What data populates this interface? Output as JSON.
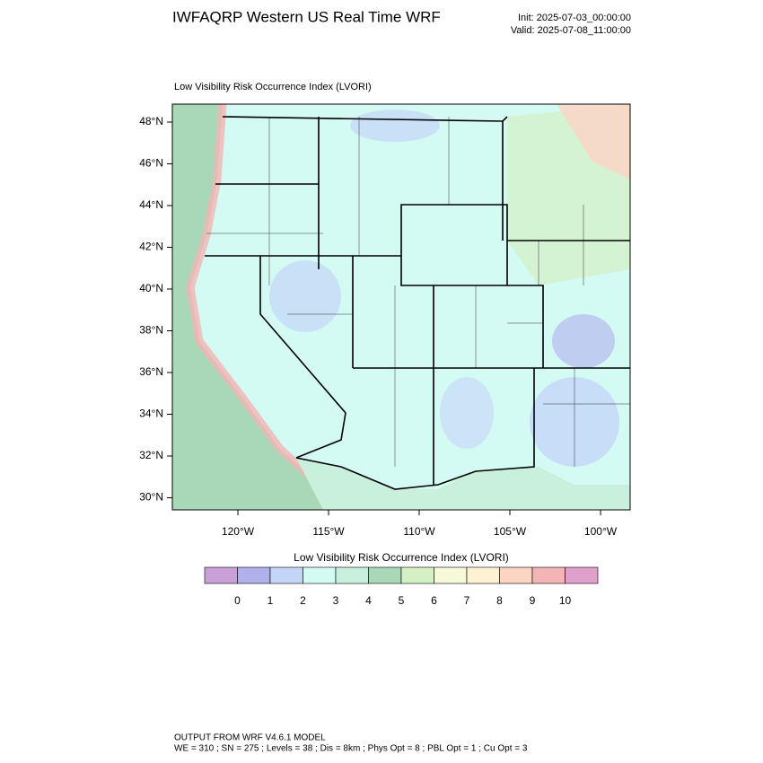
{
  "header": {
    "title": "IWFAQRP Western US Real Time WRF",
    "init": "Init: 2025-07-03_00:00:00",
    "valid": "Valid: 2025-07-08_11:00:00"
  },
  "map": {
    "subtitle": "Low Visibility Risk Occurrence Index   (LVORI)",
    "lat_labels": [
      "48°N",
      "46°N",
      "44°N",
      "42°N",
      "40°N",
      "38°N",
      "36°N",
      "34°N",
      "32°N",
      "30°N"
    ],
    "lon_labels": [
      "120°W",
      "115°W",
      "110°W",
      "105°W",
      "100°W"
    ]
  },
  "colorbar": {
    "title": "Low Visibility Risk Occurrence Index  (LVORI)",
    "labels": [
      0,
      1,
      2,
      3,
      4,
      5,
      6,
      7,
      8,
      9,
      10
    ],
    "colors": [
      "#c9a0d8",
      "#b0b0ec",
      "#c4d6f8",
      "#d4faf4",
      "#c8f0dc",
      "#a8d8b8",
      "#d4f0c4",
      "#f6fad8",
      "#fdf2d4",
      "#fcd4c4",
      "#f2b4b4",
      "#e0a0cc"
    ]
  },
  "footer": {
    "line1": "OUTPUT FROM WRF V4.6.1 MODEL",
    "line2": "WE = 310 ; SN = 275 ; Levels = 38 ; Dis = 8km ; Phys Opt = 8 ; PBL Opt = 1 ; Cu Opt = 3"
  }
}
